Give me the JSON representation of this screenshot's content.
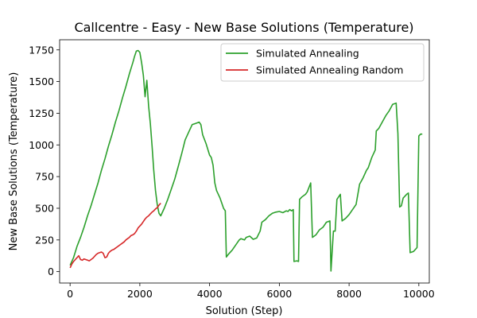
{
  "chart_data": {
    "type": "line",
    "title": "Callcentre - Easy - New Base Solutions (Temperature)",
    "xlabel": "Solution (Step)",
    "ylabel": "New Base Solutions (Temperature)",
    "xlim": [
      -300,
      10300
    ],
    "ylim": [
      -90,
      1830
    ],
    "xticks": [
      0,
      2000,
      4000,
      6000,
      8000,
      10000
    ],
    "yticks": [
      0,
      250,
      500,
      750,
      1000,
      1250,
      1500,
      1750
    ],
    "grid": false,
    "legend_position": "top-right",
    "series": [
      {
        "name": "Simulated Annealing",
        "color": "#2ca02c",
        "points": [
          [
            0,
            50
          ],
          [
            100,
            110
          ],
          [
            200,
            200
          ],
          [
            300,
            270
          ],
          [
            400,
            350
          ],
          [
            500,
            440
          ],
          [
            600,
            520
          ],
          [
            700,
            610
          ],
          [
            800,
            700
          ],
          [
            900,
            800
          ],
          [
            1000,
            890
          ],
          [
            1100,
            990
          ],
          [
            1200,
            1080
          ],
          [
            1300,
            1180
          ],
          [
            1400,
            1270
          ],
          [
            1500,
            1370
          ],
          [
            1600,
            1460
          ],
          [
            1700,
            1560
          ],
          [
            1800,
            1650
          ],
          [
            1850,
            1700
          ],
          [
            1900,
            1740
          ],
          [
            1950,
            1745
          ],
          [
            2000,
            1730
          ],
          [
            2050,
            1650
          ],
          [
            2100,
            1550
          ],
          [
            2150,
            1380
          ],
          [
            2200,
            1510
          ],
          [
            2250,
            1310
          ],
          [
            2300,
            1170
          ],
          [
            2350,
            990
          ],
          [
            2400,
            800
          ],
          [
            2450,
            640
          ],
          [
            2500,
            530
          ],
          [
            2550,
            460
          ],
          [
            2600,
            440
          ],
          [
            2700,
            500
          ],
          [
            2800,
            570
          ],
          [
            2900,
            650
          ],
          [
            3000,
            730
          ],
          [
            3100,
            830
          ],
          [
            3200,
            930
          ],
          [
            3300,
            1040
          ],
          [
            3400,
            1100
          ],
          [
            3500,
            1160
          ],
          [
            3600,
            1170
          ],
          [
            3700,
            1180
          ],
          [
            3750,
            1160
          ],
          [
            3800,
            1080
          ],
          [
            3900,
            1010
          ],
          [
            4000,
            920
          ],
          [
            4050,
            900
          ],
          [
            4100,
            840
          ],
          [
            4150,
            700
          ],
          [
            4200,
            640
          ],
          [
            4300,
            580
          ],
          [
            4400,
            500
          ],
          [
            4450,
            480
          ],
          [
            4480,
            115
          ],
          [
            4550,
            140
          ],
          [
            4650,
            170
          ],
          [
            4750,
            210
          ],
          [
            4850,
            250
          ],
          [
            4900,
            260
          ],
          [
            5000,
            250
          ],
          [
            5050,
            270
          ],
          [
            5150,
            280
          ],
          [
            5250,
            255
          ],
          [
            5350,
            265
          ],
          [
            5450,
            320
          ],
          [
            5500,
            390
          ],
          [
            5600,
            410
          ],
          [
            5700,
            440
          ],
          [
            5800,
            460
          ],
          [
            5900,
            470
          ],
          [
            6000,
            475
          ],
          [
            6100,
            465
          ],
          [
            6200,
            480
          ],
          [
            6250,
            475
          ],
          [
            6300,
            490
          ],
          [
            6350,
            480
          ],
          [
            6400,
            490
          ],
          [
            6420,
            80
          ],
          [
            6500,
            85
          ],
          [
            6550,
            80
          ],
          [
            6580,
            570
          ],
          [
            6650,
            590
          ],
          [
            6750,
            610
          ],
          [
            6800,
            630
          ],
          [
            6900,
            700
          ],
          [
            6950,
            270
          ],
          [
            7050,
            290
          ],
          [
            7150,
            330
          ],
          [
            7250,
            350
          ],
          [
            7350,
            390
          ],
          [
            7450,
            400
          ],
          [
            7480,
            5
          ],
          [
            7550,
            320
          ],
          [
            7600,
            320
          ],
          [
            7650,
            570
          ],
          [
            7750,
            610
          ],
          [
            7800,
            400
          ],
          [
            7900,
            420
          ],
          [
            8000,
            450
          ],
          [
            8100,
            490
          ],
          [
            8200,
            530
          ],
          [
            8300,
            690
          ],
          [
            8400,
            740
          ],
          [
            8500,
            800
          ],
          [
            8550,
            820
          ],
          [
            8650,
            900
          ],
          [
            8750,
            960
          ],
          [
            8780,
            1110
          ],
          [
            8850,
            1130
          ],
          [
            8950,
            1180
          ],
          [
            9050,
            1230
          ],
          [
            9150,
            1270
          ],
          [
            9250,
            1320
          ],
          [
            9350,
            1330
          ],
          [
            9400,
            1090
          ],
          [
            9450,
            510
          ],
          [
            9500,
            520
          ],
          [
            9550,
            580
          ],
          [
            9650,
            610
          ],
          [
            9700,
            620
          ],
          [
            9750,
            150
          ],
          [
            9850,
            160
          ],
          [
            9950,
            190
          ],
          [
            10000,
            1070
          ],
          [
            10050,
            1085
          ],
          [
            10100,
            1085
          ]
        ]
      },
      {
        "name": "Simulated Annealing Random",
        "color": "#d62728",
        "points": [
          [
            0,
            30
          ],
          [
            50,
            60
          ],
          [
            100,
            80
          ],
          [
            150,
            95
          ],
          [
            200,
            110
          ],
          [
            250,
            125
          ],
          [
            300,
            95
          ],
          [
            350,
            90
          ],
          [
            400,
            100
          ],
          [
            450,
            95
          ],
          [
            500,
            90
          ],
          [
            550,
            85
          ],
          [
            600,
            95
          ],
          [
            650,
            105
          ],
          [
            700,
            120
          ],
          [
            750,
            135
          ],
          [
            800,
            145
          ],
          [
            850,
            150
          ],
          [
            900,
            155
          ],
          [
            950,
            145
          ],
          [
            1000,
            110
          ],
          [
            1050,
            115
          ],
          [
            1100,
            145
          ],
          [
            1150,
            160
          ],
          [
            1200,
            170
          ],
          [
            1250,
            175
          ],
          [
            1300,
            185
          ],
          [
            1350,
            195
          ],
          [
            1400,
            205
          ],
          [
            1450,
            215
          ],
          [
            1500,
            225
          ],
          [
            1550,
            235
          ],
          [
            1600,
            250
          ],
          [
            1650,
            260
          ],
          [
            1700,
            270
          ],
          [
            1750,
            285
          ],
          [
            1800,
            290
          ],
          [
            1850,
            300
          ],
          [
            1900,
            320
          ],
          [
            1950,
            345
          ],
          [
            2000,
            360
          ],
          [
            2050,
            375
          ],
          [
            2100,
            395
          ],
          [
            2150,
            415
          ],
          [
            2200,
            430
          ],
          [
            2250,
            440
          ],
          [
            2300,
            455
          ],
          [
            2350,
            470
          ],
          [
            2400,
            480
          ],
          [
            2450,
            495
          ],
          [
            2500,
            505
          ],
          [
            2550,
            525
          ],
          [
            2600,
            540
          ]
        ]
      }
    ]
  }
}
